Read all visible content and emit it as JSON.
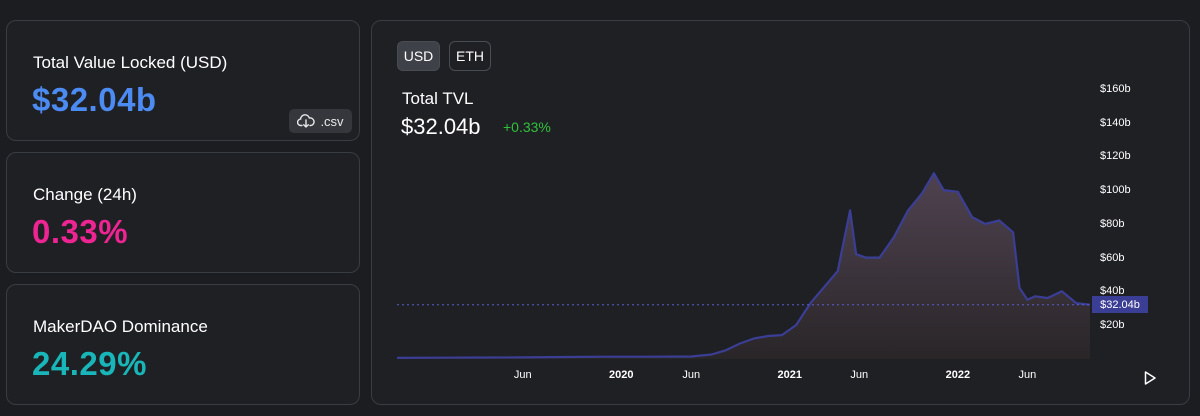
{
  "stats": {
    "tvl": {
      "label": "Total Value Locked (USD)",
      "value": "$32.04b",
      "color": "#4b8bf2"
    },
    "change": {
      "label": "Change (24h)",
      "value": "0.33%",
      "color": "#ed2492"
    },
    "dominance": {
      "label": "MakerDAO Dominance",
      "value": "24.29%",
      "color": "#19b6b9"
    },
    "csv_label": ".csv"
  },
  "chart_panel": {
    "toggles": [
      "USD",
      "ETH"
    ],
    "selected_toggle": "USD",
    "title": "Total TVL",
    "value": "$32.04b",
    "change": "+0.33%",
    "change_color": "#30c13a",
    "current_tag": "$32.04b",
    "line_color": "#3b3e95"
  },
  "chart_data": {
    "type": "area",
    "title": "Total TVL",
    "y_unit": "USD billions",
    "ylim": [
      0,
      170
    ],
    "y_ticks": [
      "$160b",
      "$140b",
      "$120b",
      "$100b",
      "$80b",
      "$60b",
      "$40b",
      "$20b"
    ],
    "y_tick_values": [
      160,
      140,
      120,
      100,
      80,
      60,
      40,
      20
    ],
    "x_ticks": [
      "Jun",
      "2020",
      "Jun",
      "2021",
      "Jun",
      "2022",
      "Jun"
    ],
    "x_tick_bold": [
      false,
      true,
      false,
      true,
      false,
      true,
      false
    ],
    "x_tick_dates": [
      "2019-06-01",
      "2020-01-01",
      "2020-06-01",
      "2021-01-01",
      "2021-06-01",
      "2022-01-01",
      "2022-06-01"
    ],
    "current_value": 32.04,
    "grid": false,
    "series": [
      {
        "x": [
          "2018-09-01",
          "2018-12-01",
          "2019-03-01",
          "2019-06-01",
          "2019-09-01",
          "2019-12-01",
          "2020-03-01",
          "2020-06-01",
          "2020-07-15",
          "2020-08-15",
          "2020-09-15",
          "2020-10-15",
          "2020-11-15",
          "2020-12-15",
          "2021-01-15",
          "2021-02-15",
          "2021-03-15",
          "2021-04-15",
          "2021-05-12",
          "2021-05-25",
          "2021-06-15",
          "2021-07-15",
          "2021-08-15",
          "2021-09-15",
          "2021-10-15",
          "2021-11-10",
          "2021-12-01",
          "2022-01-01",
          "2022-02-01",
          "2022-03-01",
          "2022-04-01",
          "2022-05-01",
          "2022-05-15",
          "2022-06-01",
          "2022-06-18",
          "2022-07-15",
          "2022-08-15",
          "2022-09-15",
          "2022-10-15"
        ],
        "y": [
          0.5,
          0.6,
          0.7,
          0.8,
          1,
          1.2,
          1.2,
          1.3,
          2.5,
          5,
          9,
          12,
          13.5,
          14,
          20,
          33,
          42,
          52,
          88,
          62,
          60,
          60,
          72,
          88,
          98,
          110,
          100,
          99,
          84,
          80,
          82,
          75,
          42,
          35,
          37,
          36,
          40,
          33,
          32.04
        ]
      }
    ]
  }
}
